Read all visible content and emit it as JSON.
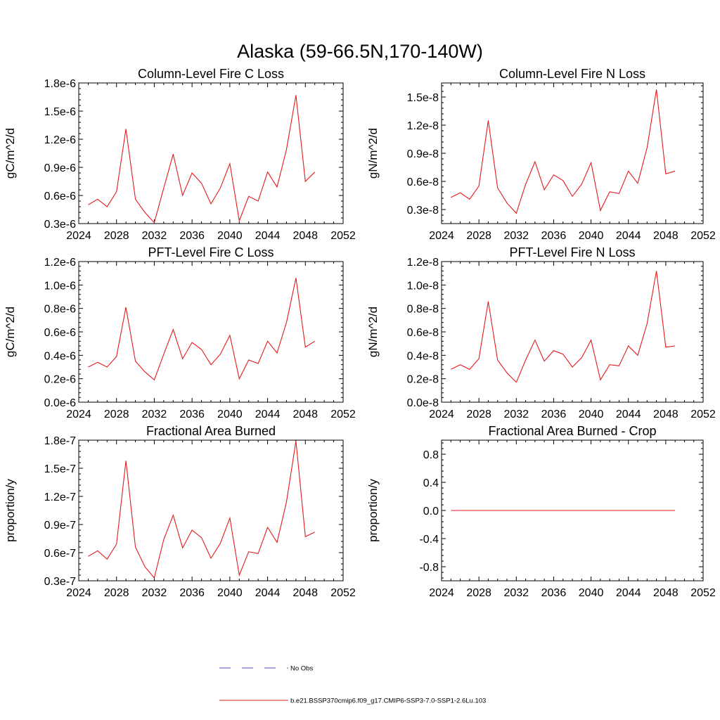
{
  "figure_title": "Alaska (59-66.5N,170-140W)",
  "legend": [
    {
      "label": "No Obs",
      "color": "#4b4bd2",
      "style": "dashed"
    },
    {
      "label": "b.e21.BSSP370cmip6.f09_g17.CMIP6-SSP3-7.0-SSP1-2.6Lu.103",
      "color": "#e41a1c",
      "style": "solid"
    }
  ],
  "chart_data": [
    {
      "type": "line",
      "title": "Column-Level Fire C Loss",
      "ylabel": "gC/m^2/d",
      "xlim": [
        2024,
        2052
      ],
      "xticks": [
        2024,
        2028,
        2032,
        2036,
        2040,
        2044,
        2048,
        2052
      ],
      "ylim": [
        0.3,
        1.8
      ],
      "yticks": [
        0.3,
        0.6,
        0.9,
        1.2,
        1.5,
        1.8
      ],
      "yticklabels": [
        "0.3e-6",
        "0.6e-6",
        "0.9e-6",
        "1.2e-6",
        "1.5e-6",
        "1.8e-6"
      ],
      "yunit": "e-6",
      "x": [
        2025,
        2026,
        2027,
        2028,
        2029,
        2030,
        2031,
        2032,
        2033,
        2034,
        2035,
        2036,
        2037,
        2038,
        2039,
        2040,
        2041,
        2042,
        2043,
        2044,
        2045,
        2046,
        2047,
        2048,
        2049
      ],
      "series": [
        {
          "name": "b.e21.BSSP370cmip6.f09_g17.CMIP6-SSP3-7.0-SSP1-2.6Lu.103",
          "color": "#e41a1c",
          "values": [
            0.5,
            0.56,
            0.48,
            0.64,
            1.31,
            0.56,
            0.42,
            0.31,
            0.68,
            1.04,
            0.6,
            0.84,
            0.73,
            0.51,
            0.68,
            0.94,
            0.33,
            0.59,
            0.54,
            0.85,
            0.69,
            1.09,
            1.67,
            0.75,
            0.85
          ]
        }
      ]
    },
    {
      "type": "line",
      "title": "Column-Level Fire N Loss",
      "ylabel": "gN/m^2/d",
      "xlim": [
        2024,
        2052
      ],
      "xticks": [
        2024,
        2028,
        2032,
        2036,
        2040,
        2044,
        2048,
        2052
      ],
      "ylim": [
        0.15,
        1.65
      ],
      "yticks": [
        0.3,
        0.6,
        0.9,
        1.2,
        1.5
      ],
      "yticklabels": [
        "0.3e-8",
        "0.6e-8",
        "0.9e-8",
        "1.2e-8",
        "1.5e-8"
      ],
      "yunit": "e-8",
      "x": [
        2025,
        2026,
        2027,
        2028,
        2029,
        2030,
        2031,
        2032,
        2033,
        2034,
        2035,
        2036,
        2037,
        2038,
        2039,
        2040,
        2041,
        2042,
        2043,
        2044,
        2045,
        2046,
        2047,
        2048,
        2049
      ],
      "series": [
        {
          "name": "b.e21.BSSP370cmip6.f09_g17.CMIP6-SSP3-7.0-SSP1-2.6Lu.103",
          "color": "#e41a1c",
          "values": [
            0.43,
            0.48,
            0.41,
            0.55,
            1.25,
            0.53,
            0.37,
            0.26,
            0.57,
            0.81,
            0.51,
            0.67,
            0.61,
            0.44,
            0.57,
            0.8,
            0.29,
            0.49,
            0.47,
            0.71,
            0.58,
            0.96,
            1.58,
            0.68,
            0.71
          ]
        }
      ]
    },
    {
      "type": "line",
      "title": "PFT-Level Fire C Loss",
      "ylabel": "gC/m^2/d",
      "xlim": [
        2024,
        2052
      ],
      "xticks": [
        2024,
        2028,
        2032,
        2036,
        2040,
        2044,
        2048,
        2052
      ],
      "ylim": [
        0.0,
        1.2
      ],
      "yticks": [
        0.0,
        0.2,
        0.4,
        0.6,
        0.8,
        1.0,
        1.2
      ],
      "yticklabels": [
        "0.0e-6",
        "0.2e-6",
        "0.4e-6",
        "0.6e-6",
        "0.8e-6",
        "1.0e-6",
        "1.2e-6"
      ],
      "yunit": "e-6",
      "x": [
        2025,
        2026,
        2027,
        2028,
        2029,
        2030,
        2031,
        2032,
        2033,
        2034,
        2035,
        2036,
        2037,
        2038,
        2039,
        2040,
        2041,
        2042,
        2043,
        2044,
        2045,
        2046,
        2047,
        2048,
        2049
      ],
      "series": [
        {
          "name": "b.e21.BSSP370cmip6.f09_g17.CMIP6-SSP3-7.0-SSP1-2.6Lu.103",
          "color": "#e41a1c",
          "values": [
            0.3,
            0.34,
            0.3,
            0.39,
            0.81,
            0.35,
            0.26,
            0.19,
            0.41,
            0.62,
            0.37,
            0.51,
            0.45,
            0.32,
            0.41,
            0.57,
            0.2,
            0.36,
            0.33,
            0.52,
            0.42,
            0.68,
            1.06,
            0.47,
            0.52
          ]
        }
      ]
    },
    {
      "type": "line",
      "title": "PFT-Level Fire N Loss",
      "ylabel": "gN/m^2/d",
      "xlim": [
        2024,
        2052
      ],
      "xticks": [
        2024,
        2028,
        2032,
        2036,
        2040,
        2044,
        2048,
        2052
      ],
      "ylim": [
        0.0,
        1.2
      ],
      "yticks": [
        0.0,
        0.2,
        0.4,
        0.6,
        0.8,
        1.0,
        1.2
      ],
      "yticklabels": [
        "0.0e-8",
        "0.2e-8",
        "0.4e-8",
        "0.6e-8",
        "0.8e-8",
        "1.0e-8",
        "1.2e-8"
      ],
      "yunit": "e-8",
      "x": [
        2025,
        2026,
        2027,
        2028,
        2029,
        2030,
        2031,
        2032,
        2033,
        2034,
        2035,
        2036,
        2037,
        2038,
        2039,
        2040,
        2041,
        2042,
        2043,
        2044,
        2045,
        2046,
        2047,
        2048,
        2049
      ],
      "series": [
        {
          "name": "b.e21.BSSP370cmip6.f09_g17.CMIP6-SSP3-7.0-SSP1-2.6Lu.103",
          "color": "#e41a1c",
          "values": [
            0.28,
            0.32,
            0.28,
            0.37,
            0.86,
            0.36,
            0.25,
            0.17,
            0.36,
            0.53,
            0.35,
            0.44,
            0.41,
            0.3,
            0.38,
            0.53,
            0.19,
            0.32,
            0.31,
            0.48,
            0.4,
            0.67,
            1.12,
            0.47,
            0.48
          ]
        }
      ]
    },
    {
      "type": "line",
      "title": "Fractional Area Burned",
      "ylabel": "proportion/y",
      "xlim": [
        2024,
        2052
      ],
      "xticks": [
        2024,
        2028,
        2032,
        2036,
        2040,
        2044,
        2048,
        2052
      ],
      "ylim": [
        0.3,
        1.8
      ],
      "yticks": [
        0.3,
        0.6,
        0.9,
        1.2,
        1.5,
        1.8
      ],
      "yticklabels": [
        "0.3e-7",
        "0.6e-7",
        "0.9e-7",
        "1.2e-7",
        "1.5e-7",
        "1.8e-7"
      ],
      "yunit": "e-7",
      "x": [
        2025,
        2026,
        2027,
        2028,
        2029,
        2030,
        2031,
        2032,
        2033,
        2034,
        2035,
        2036,
        2037,
        2038,
        2039,
        2040,
        2041,
        2042,
        2043,
        2044,
        2045,
        2046,
        2047,
        2048,
        2049
      ],
      "series": [
        {
          "name": "b.e21.BSSP370cmip6.f09_g17.CMIP6-SSP3-7.0-SSP1-2.6Lu.103",
          "color": "#e41a1c",
          "values": [
            0.56,
            0.62,
            0.53,
            0.69,
            1.58,
            0.66,
            0.45,
            0.33,
            0.74,
            1.0,
            0.65,
            0.84,
            0.76,
            0.54,
            0.7,
            0.97,
            0.36,
            0.61,
            0.59,
            0.87,
            0.71,
            1.14,
            1.79,
            0.77,
            0.82
          ]
        }
      ]
    },
    {
      "type": "line",
      "title": "Fractional Area Burned - Crop",
      "ylabel": "proportion/y",
      "xlim": [
        2024,
        2052
      ],
      "xticks": [
        2024,
        2028,
        2032,
        2036,
        2040,
        2044,
        2048,
        2052
      ],
      "ylim": [
        -1.0,
        1.0
      ],
      "yticks": [
        -0.8,
        -0.4,
        0.0,
        0.4,
        0.8
      ],
      "yticklabels": [
        "-0.8",
        "-0.4",
        "0.0",
        "0.4",
        "0.8"
      ],
      "yunit": "",
      "x": [
        2025,
        2026,
        2027,
        2028,
        2029,
        2030,
        2031,
        2032,
        2033,
        2034,
        2035,
        2036,
        2037,
        2038,
        2039,
        2040,
        2041,
        2042,
        2043,
        2044,
        2045,
        2046,
        2047,
        2048,
        2049
      ],
      "series": [
        {
          "name": "b.e21.BSSP370cmip6.f09_g17.CMIP6-SSP3-7.0-SSP1-2.6Lu.103",
          "color": "#e41a1c",
          "values": [
            0,
            0,
            0,
            0,
            0,
            0,
            0,
            0,
            0,
            0,
            0,
            0,
            0,
            0,
            0,
            0,
            0,
            0,
            0,
            0,
            0,
            0,
            0,
            0,
            0
          ]
        }
      ]
    }
  ]
}
